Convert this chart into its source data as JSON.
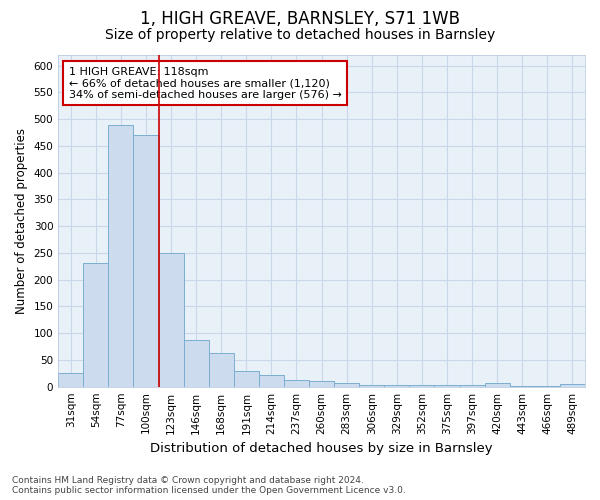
{
  "title": "1, HIGH GREAVE, BARNSLEY, S71 1WB",
  "subtitle": "Size of property relative to detached houses in Barnsley",
  "xlabel": "Distribution of detached houses by size in Barnsley",
  "ylabel": "Number of detached properties",
  "categories": [
    "31sqm",
    "54sqm",
    "77sqm",
    "100sqm",
    "123sqm",
    "146sqm",
    "168sqm",
    "191sqm",
    "214sqm",
    "237sqm",
    "260sqm",
    "283sqm",
    "306sqm",
    "329sqm",
    "352sqm",
    "375sqm",
    "397sqm",
    "420sqm",
    "443sqm",
    "466sqm",
    "489sqm"
  ],
  "values": [
    25,
    232,
    490,
    470,
    250,
    88,
    63,
    30,
    22,
    13,
    11,
    7,
    4,
    3,
    3,
    3,
    3,
    6,
    2,
    2,
    5
  ],
  "bar_color": "#ccdcee",
  "bar_edge_color": "#7aaed0",
  "vline_color": "#cc0000",
  "vline_x": 3.5,
  "annotation_text": "1 HIGH GREAVE: 118sqm\n← 66% of detached houses are smaller (1,120)\n34% of semi-detached houses are larger (576) →",
  "annotation_box_color": "#ffffff",
  "annotation_box_edge": "#cc0000",
  "ylim": [
    0,
    620
  ],
  "yticks": [
    0,
    50,
    100,
    150,
    200,
    250,
    300,
    350,
    400,
    450,
    500,
    550,
    600
  ],
  "footnote": "Contains HM Land Registry data © Crown copyright and database right 2024.\nContains public sector information licensed under the Open Government Licence v3.0.",
  "bg_color": "#ffffff",
  "axes_bg_color": "#e8f0f8",
  "grid_color": "#c8d8e8",
  "title_fontsize": 12,
  "subtitle_fontsize": 10,
  "xlabel_fontsize": 9.5,
  "ylabel_fontsize": 8.5,
  "tick_fontsize": 7.5,
  "annotation_fontsize": 8,
  "footnote_fontsize": 6.5
}
